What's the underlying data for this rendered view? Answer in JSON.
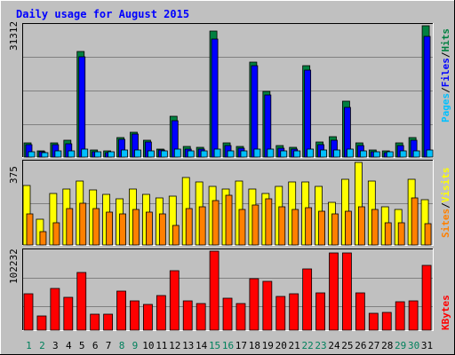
{
  "chart_data": [
    {
      "type": "bar",
      "panel": "hits-files-pages",
      "title": "Daily usage for August 2015",
      "y_max_label": "31312",
      "ylim": [
        0,
        31312
      ],
      "grid": true,
      "categories": [
        "1",
        "2",
        "3",
        "4",
        "5",
        "6",
        "7",
        "8",
        "9",
        "10",
        "11",
        "12",
        "13",
        "14",
        "15",
        "16",
        "17",
        "18",
        "19",
        "20",
        "21",
        "22",
        "23",
        "24",
        "25",
        "26",
        "27",
        "28",
        "29",
        "30",
        "31"
      ],
      "series": [
        {
          "name": "Hits",
          "color": "#008040",
          "values": [
            3300,
            1500,
            3400,
            4100,
            25100,
            1600,
            1500,
            4700,
            6000,
            4100,
            2000,
            9700,
            2500,
            2300,
            30000,
            3400,
            2500,
            22700,
            15700,
            2800,
            2300,
            21800,
            3600,
            4900,
            13400,
            3300,
            1600,
            1500,
            3300,
            4700,
            31300
          ]
        },
        {
          "name": "Files",
          "color": "#0000FF",
          "values": [
            3000,
            1200,
            2900,
            3200,
            24000,
            1300,
            1100,
            4200,
            5400,
            3600,
            1700,
            8600,
            2000,
            1800,
            28200,
            2800,
            2100,
            21800,
            14800,
            2200,
            1900,
            20800,
            3000,
            4100,
            11800,
            2800,
            1200,
            1100,
            2700,
            4000,
            28800
          ]
        },
        {
          "name": "Pages",
          "color": "#00C0FF",
          "values": [
            1300,
            1100,
            1500,
            1500,
            1800,
            1300,
            1200,
            1600,
            1600,
            1500,
            1400,
            1800,
            1400,
            1400,
            2000,
            1500,
            1400,
            1900,
            1800,
            1400,
            1400,
            1900,
            1600,
            1600,
            1900,
            1500,
            1300,
            1200,
            1400,
            1500,
            1700
          ]
        }
      ]
    },
    {
      "type": "bar",
      "panel": "visits-sites",
      "y_max_label": "375",
      "ylim": [
        0,
        375
      ],
      "grid": true,
      "categories": [
        "1",
        "2",
        "3",
        "4",
        "5",
        "6",
        "7",
        "8",
        "9",
        "10",
        "11",
        "12",
        "13",
        "14",
        "15",
        "16",
        "17",
        "18",
        "19",
        "20",
        "21",
        "22",
        "23",
        "24",
        "25",
        "26",
        "27",
        "28",
        "29",
        "30",
        "31"
      ],
      "series": [
        {
          "name": "Visits",
          "color": "#FFFF00",
          "values": [
            270,
            115,
            235,
            255,
            290,
            250,
            230,
            210,
            255,
            230,
            215,
            220,
            305,
            285,
            265,
            255,
            290,
            255,
            235,
            265,
            285,
            285,
            265,
            195,
            300,
            375,
            290,
            175,
            160,
            300,
            205
          ]
        },
        {
          "name": "Sites",
          "color": "#FF8000",
          "values": [
            140,
            60,
            100,
            165,
            190,
            165,
            150,
            140,
            160,
            150,
            140,
            90,
            165,
            175,
            200,
            225,
            160,
            180,
            210,
            175,
            160,
            170,
            155,
            140,
            155,
            175,
            160,
            100,
            100,
            215,
            95
          ]
        }
      ]
    },
    {
      "type": "bar",
      "panel": "kbytes",
      "y_max_label": "102232",
      "ylim": [
        0,
        102232
      ],
      "grid": true,
      "categories": [
        "1",
        "2",
        "3",
        "4",
        "5",
        "6",
        "7",
        "8",
        "9",
        "10",
        "11",
        "12",
        "13",
        "14",
        "15",
        "16",
        "17",
        "18",
        "19",
        "20",
        "21",
        "22",
        "23",
        "24",
        "25",
        "26",
        "27",
        "28",
        "29",
        "30",
        "31"
      ],
      "series": [
        {
          "name": "KBytes",
          "color": "#FF0000",
          "values": [
            47500,
            18000,
            54000,
            43000,
            74500,
            21000,
            21000,
            51000,
            38000,
            33000,
            45000,
            76500,
            37500,
            35000,
            102000,
            41000,
            35000,
            66500,
            63500,
            44000,
            47000,
            79000,
            48000,
            100500,
            100500,
            48000,
            22000,
            22500,
            37000,
            37500,
            84000
          ]
        }
      ]
    }
  ],
  "legend": {
    "pages": "Pages",
    "files": "Files",
    "hits": "Hits",
    "sites": "Sites",
    "visits": "Visits",
    "kbytes": "KBytes",
    "sep": "/",
    "label_colors": {
      "pages": "#00C0FF",
      "files": "#0000FF",
      "hits": "#008040",
      "sites": "#FF8000",
      "visits": "#FFFF00",
      "kbytes": "#FF0000"
    }
  },
  "x_label_colors": {
    "weekday": "#000000",
    "weekend": "#00805C"
  },
  "weekend_days": [
    "1",
    "2",
    "8",
    "9",
    "15",
    "16",
    "22",
    "23",
    "29",
    "30"
  ]
}
